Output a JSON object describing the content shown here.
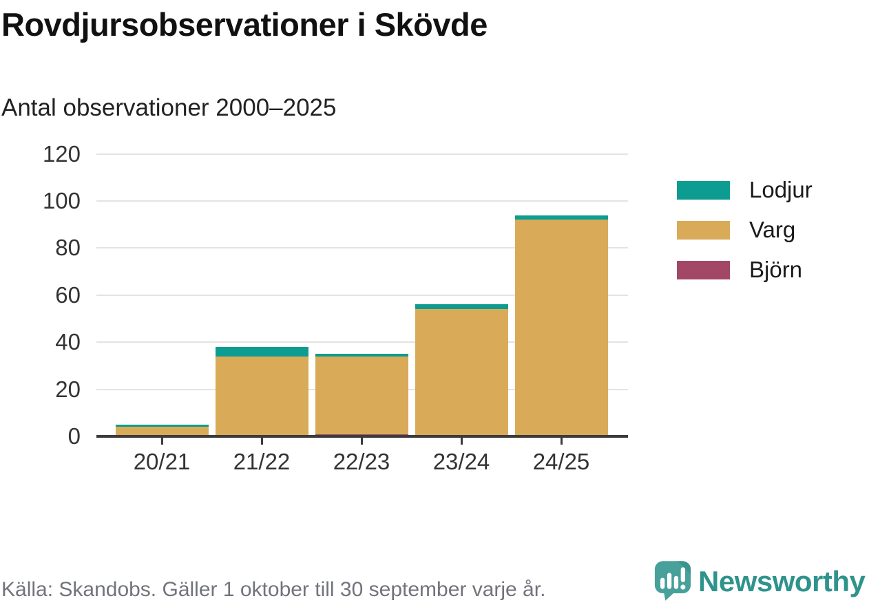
{
  "header": {
    "title": "Rovdjursobservationer i Skövde",
    "subtitle": "Antal observationer 2000–2025"
  },
  "chart_data": {
    "type": "bar",
    "stacked": true,
    "title": "Rovdjursobservationer i Skövde",
    "subtitle": "Antal observationer 2000–2025",
    "categories": [
      "20/21",
      "21/22",
      "22/23",
      "23/24",
      "24/25"
    ],
    "series": [
      {
        "name": "Björn",
        "color": "#a34766",
        "values": [
          0,
          0,
          1,
          0,
          0
        ]
      },
      {
        "name": "Varg",
        "color": "#d9aa58",
        "values": [
          4,
          34,
          33,
          54,
          92
        ]
      },
      {
        "name": "Lodjur",
        "color": "#0d9c92",
        "values": [
          1,
          4,
          1,
          2,
          2
        ]
      }
    ],
    "totals": [
      5,
      38,
      35,
      56,
      94
    ],
    "xlabel": "",
    "ylabel": "",
    "ylim": [
      0,
      120
    ],
    "yticks": [
      0,
      20,
      40,
      60,
      80,
      100,
      120
    ],
    "grid": true,
    "legend_position": "right"
  },
  "legend": {
    "items": [
      {
        "label": "Lodjur",
        "color": "#0d9c92"
      },
      {
        "label": "Varg",
        "color": "#d9aa58"
      },
      {
        "label": "Björn",
        "color": "#a34766"
      }
    ]
  },
  "footer": {
    "source": "Källa: Skandobs. Gäller 1 oktober till 30 september varje år.",
    "brand": "Newsworthy"
  },
  "colors": {
    "lodjur_teal": "#0d9c92",
    "varg_tan": "#d9aa58",
    "bjorn_maroon": "#a34766",
    "gridline": "#e3e3e3",
    "axis": "#3b3b3b",
    "text_dark": "#1a1a1a",
    "footer_gray": "#72747c",
    "brand_teal": "#47a09a",
    "brand_teal_dark": "#348b85",
    "brand_text": "#2f938c"
  }
}
